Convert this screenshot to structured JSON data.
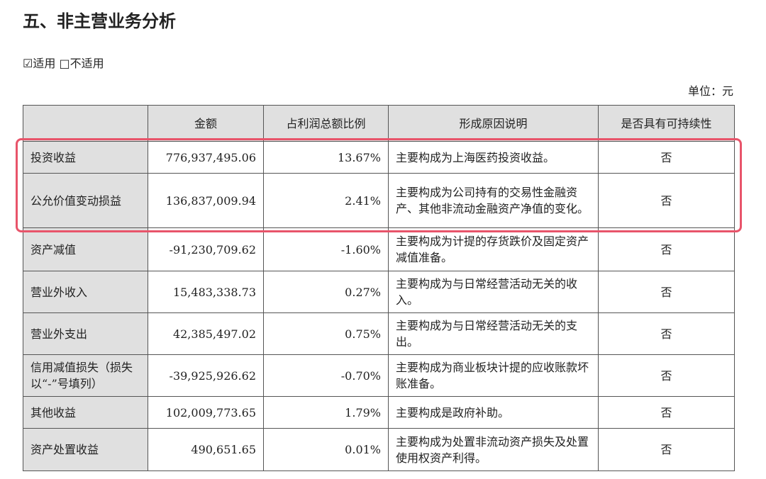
{
  "title": "五、非主营业务分析",
  "applicable": {
    "checked_label": "☑适用",
    "unchecked_label": "□不适用"
  },
  "unit": "单位：元",
  "table": {
    "headers": [
      "",
      "金额",
      "占利润总额比例",
      "形成原因说明",
      "是否具有可持续性"
    ],
    "rows": [
      {
        "item": "投资收益",
        "amount": "776,937,495.06",
        "ratio": "13.67%",
        "reason": "主要构成为上海医药投资收益。",
        "sustainable": "否",
        "h": 45
      },
      {
        "item": "公允价值变动损益",
        "amount": "136,837,009.94",
        "ratio": "2.41%",
        "reason": "主要构成为公司持有的交易性金融资产、其他非流动金融资产净值的变化。",
        "sustainable": "否",
        "h": 77
      },
      {
        "item": "资产减值",
        "amount": "-91,230,709.62",
        "ratio": "-1.60%",
        "reason": "主要构成为计提的存货跌价及固定资产减值准备。",
        "sustainable": "否",
        "h": 61
      },
      {
        "item": "营业外收入",
        "amount": "15,483,338.73",
        "ratio": "0.27%",
        "reason": "主要构成为与日常经营活动无关的收入。",
        "sustainable": "否",
        "h": 59
      },
      {
        "item": "营业外支出",
        "amount": "42,385,497.02",
        "ratio": "0.75%",
        "reason": "主要构成为与日常经营活动无关的支出。",
        "sustainable": "否",
        "h": 59
      },
      {
        "item": "信用减值损失（损失以“-”号填列）",
        "amount": "-39,925,926.62",
        "ratio": "-0.70%",
        "reason": "主要构成为商业板块计提的应收账款坏账准备。",
        "sustainable": "否",
        "h": 59
      },
      {
        "item": "其他收益",
        "amount": "102,009,773.65",
        "ratio": "1.79%",
        "reason": "主要构成是政府补助。",
        "sustainable": "否",
        "h": 45
      },
      {
        "item": "资产处置收益",
        "amount": "490,651.65",
        "ratio": "0.01%",
        "reason": "主要构成为处置非流动资产损失及处置使用权资产利得。",
        "sustainable": "否",
        "h": 60
      }
    ]
  },
  "highlight_color": "#e8546a"
}
